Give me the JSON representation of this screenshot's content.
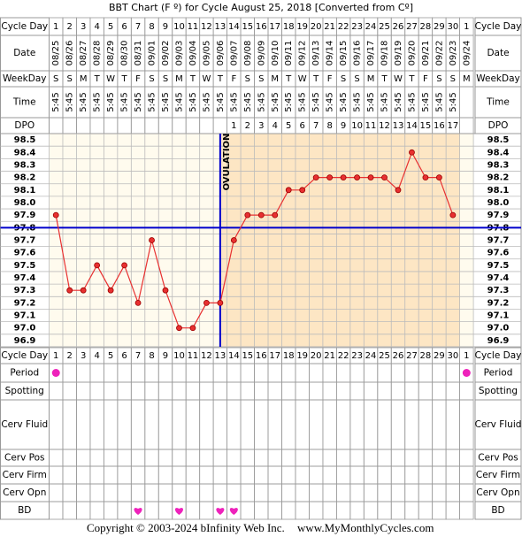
{
  "chart_data": {
    "type": "line",
    "title": "BBT Chart (F º) for Cycle August 25, 2018  [Converted from Cº]",
    "row_labels": {
      "cycle_day": "Cycle Day",
      "date": "Date",
      "weekday": "WeekDay",
      "time": "Time",
      "dpo": "DPO",
      "period": "Period",
      "spotting": "Spotting",
      "cerv_fluid": "Cerv Fluid",
      "cerv_pos": "Cerv Pos",
      "cerv_firm": "Cerv Firm",
      "cerv_opn": "Cerv Opn",
      "bd": "BD"
    },
    "categories": [
      1,
      2,
      3,
      4,
      5,
      6,
      7,
      8,
      9,
      10,
      11,
      12,
      13,
      14,
      15,
      16,
      17,
      18,
      19,
      20,
      21,
      22,
      23,
      24,
      25,
      26,
      27,
      28,
      29,
      30,
      1
    ],
    "dates": [
      "08/25",
      "08/26",
      "08/27",
      "08/28",
      "08/29",
      "08/30",
      "08/31",
      "09/01",
      "09/02",
      "09/03",
      "09/04",
      "09/05",
      "09/06",
      "09/07",
      "09/08",
      "09/09",
      "09/10",
      "09/11",
      "09/12",
      "09/13",
      "09/14",
      "09/15",
      "09/16",
      "09/17",
      "09/18",
      "09/19",
      "09/20",
      "09/21",
      "09/22",
      "09/23",
      "09/24"
    ],
    "weekdays": [
      "S",
      "S",
      "M",
      "T",
      "W",
      "T",
      "F",
      "S",
      "S",
      "M",
      "T",
      "W",
      "T",
      "F",
      "S",
      "S",
      "M",
      "T",
      "W",
      "T",
      "F",
      "S",
      "S",
      "M",
      "T",
      "W",
      "T",
      "F",
      "S",
      "S",
      "M"
    ],
    "times": [
      "5:45",
      "5:45",
      "5:45",
      "5:45",
      "5:45",
      "5:45",
      "5:45",
      "5:45",
      "5:45",
      "5:45",
      "5:45",
      "5:45",
      "5:45",
      "5:45",
      "5:45",
      "5:45",
      "5:45",
      "5:45",
      "5:45",
      "5:45",
      "5:45",
      "5:45",
      "5:45",
      "5:45",
      "5:45",
      "5:45",
      "5:45",
      "5:45",
      "5:45",
      "5:45",
      null
    ],
    "dpo": [
      null,
      null,
      null,
      null,
      null,
      null,
      null,
      null,
      null,
      null,
      null,
      null,
      null,
      1,
      2,
      3,
      4,
      5,
      6,
      7,
      8,
      9,
      10,
      11,
      12,
      13,
      14,
      15,
      16,
      17,
      null
    ],
    "values": [
      97.9,
      97.3,
      97.3,
      97.5,
      97.3,
      97.5,
      97.2,
      97.7,
      97.3,
      97.0,
      97.0,
      97.2,
      97.2,
      97.7,
      97.9,
      97.9,
      97.9,
      98.1,
      98.1,
      98.2,
      98.2,
      98.2,
      98.2,
      98.2,
      98.2,
      98.1,
      98.4,
      98.2,
      98.2,
      97.9,
      null
    ],
    "color": "#e83030",
    "coverline": 97.8,
    "coverline_color": "#0000cc",
    "ovulation": 13,
    "ovulation_label": "OVULATION",
    "period": [
      true,
      false,
      false,
      false,
      false,
      false,
      false,
      false,
      false,
      false,
      false,
      false,
      false,
      false,
      false,
      false,
      false,
      false,
      false,
      false,
      false,
      false,
      false,
      false,
      false,
      false,
      false,
      false,
      false,
      false,
      true
    ],
    "bd": [
      false,
      false,
      false,
      false,
      false,
      false,
      true,
      false,
      false,
      true,
      false,
      false,
      true,
      true,
      false,
      false,
      false,
      false,
      false,
      false,
      false,
      false,
      false,
      false,
      false,
      false,
      false,
      false,
      false,
      false,
      false
    ],
    "marker_color": "#ee22bb",
    "ylim": [
      96.85,
      98.55
    ],
    "yticks": [
      98.5,
      98.4,
      98.3,
      98.2,
      98.1,
      {
        "value": 98,
        "label": "98.0"
      },
      97.9,
      97.8,
      97.7,
      97.6,
      97.5,
      97.4,
      97.3,
      97.2,
      97.1,
      {
        "value": 97,
        "label": "97.0"
      },
      96.9
    ],
    "copyright": "Copyright © 2003-2024 bInfinity Web Inc.",
    "website": "www.MyMonthlyCycles.com"
  }
}
